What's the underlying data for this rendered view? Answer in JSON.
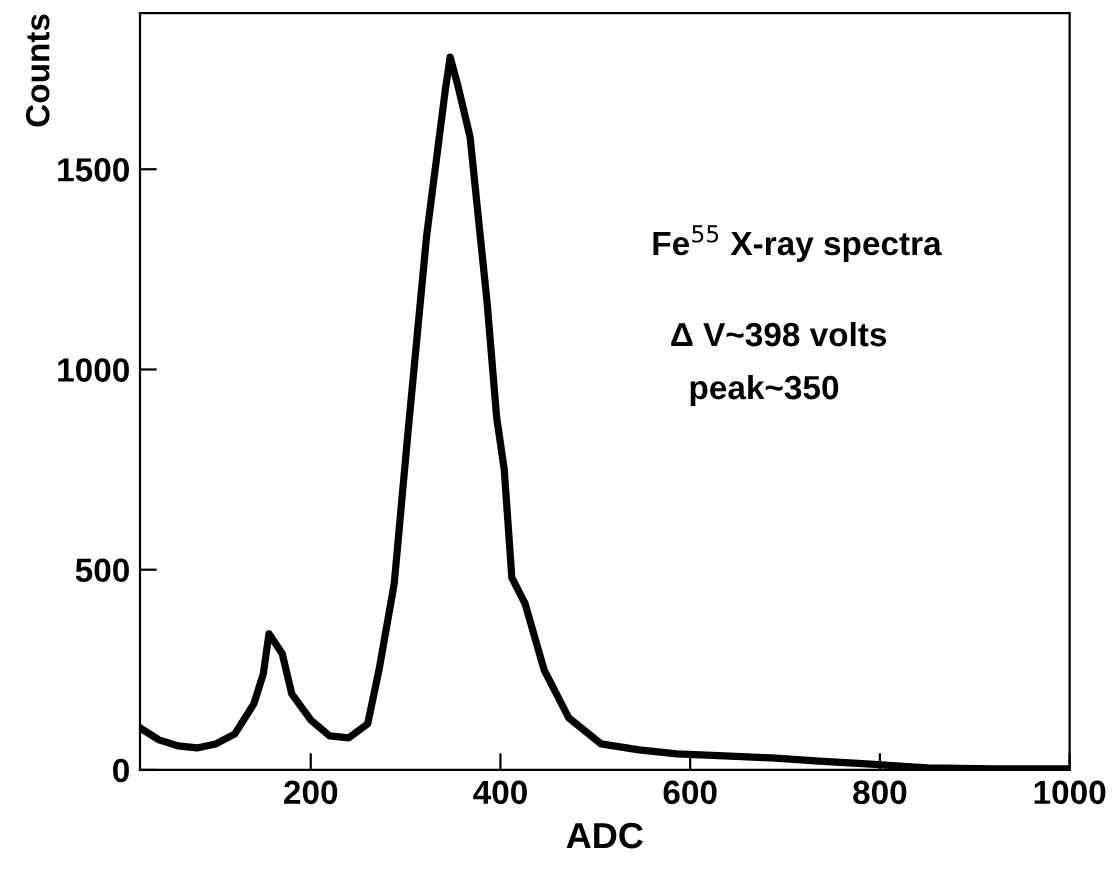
{
  "chart_data": {
    "type": "line",
    "xlabel": "ADC",
    "ylabel": "Counts",
    "annotations": [
      "Fe$^{55}$ X-ray spectra",
      "Δ V~398 volts",
      "peak~350"
    ],
    "x": [
      20,
      40,
      60,
      80,
      100,
      120,
      140,
      150,
      156,
      170,
      180,
      200,
      220,
      240,
      260,
      272,
      288,
      302,
      322,
      342,
      347,
      355,
      368,
      386,
      396,
      404,
      412,
      426,
      446,
      472,
      506,
      546,
      586,
      636,
      686,
      736,
      786,
      850,
      920,
      1000
    ],
    "series": [
      {
        "color": "#000000",
        "values": [
          105,
          75,
          60,
          55,
          65,
          90,
          165,
          240,
          340,
          290,
          190,
          125,
          85,
          80,
          115,
          250,
          465,
          830,
          1330,
          1700,
          1780,
          1710,
          1580,
          1165,
          880,
          750,
          480,
          415,
          250,
          130,
          65,
          50,
          40,
          35,
          30,
          22,
          15,
          5,
          3,
          3
        ]
      }
    ],
    "xlim": [
      20,
      1000
    ],
    "ylim": [
      0,
      1890
    ],
    "xticks": [
      200,
      400,
      600,
      800,
      1000
    ],
    "yticks": [
      0,
      500,
      1000,
      1500
    ],
    "grid": false,
    "legend": false,
    "marker": "none",
    "line_style": "solid"
  }
}
